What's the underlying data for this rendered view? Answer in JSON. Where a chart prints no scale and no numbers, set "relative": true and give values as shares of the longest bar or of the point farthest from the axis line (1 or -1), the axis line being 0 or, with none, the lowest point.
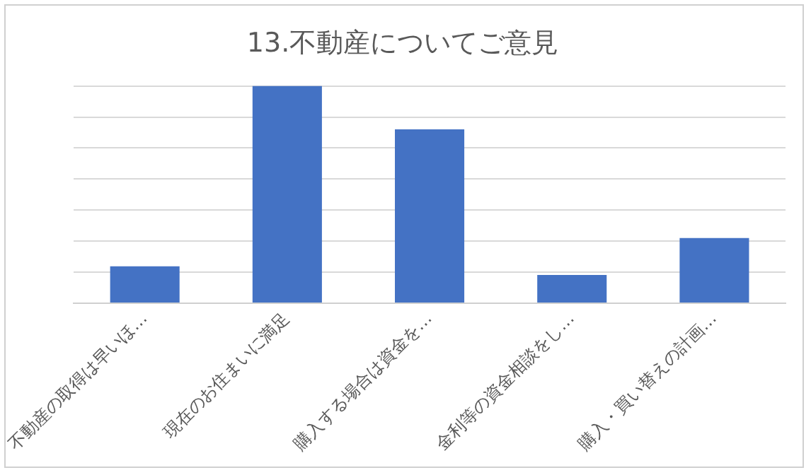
{
  "chart_data": {
    "type": "bar",
    "title": "13.不動産についてご意見",
    "categories": [
      "不動産の取得は早いほ…",
      "現在のお住まいに満足",
      "購入する場合は資金を…",
      "金利等の資金相談をし…",
      "購入・買い替えの計画…"
    ],
    "values": [
      0.17,
      1,
      0.8,
      0.13,
      0.3
    ],
    "color": "#4472c4",
    "relative": true,
    "grid": "y",
    "legend": false
  }
}
